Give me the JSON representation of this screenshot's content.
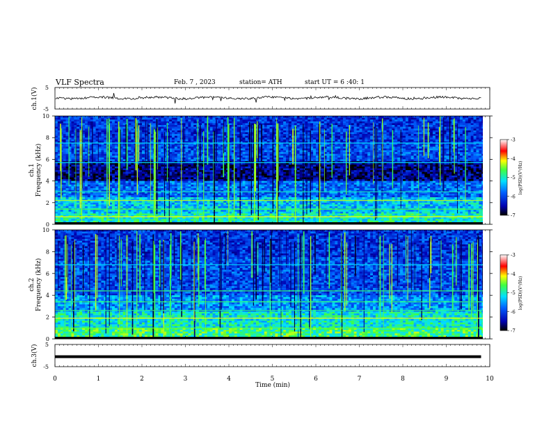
{
  "header": {
    "title": "VLF Spectra",
    "date": "Feb. 7 , 2023",
    "station": "station= ATH",
    "start": "start UT =  6 :40: 1"
  },
  "chart_data": [
    {
      "type": "line",
      "name": "ch1-waveform",
      "ylabel": "ch.1(V)",
      "ylim": [
        -5,
        5
      ],
      "yticks": [
        "5",
        "-5"
      ],
      "xlim": [
        0,
        10
      ]
    },
    {
      "type": "heatmap",
      "name": "ch1-spectrogram",
      "ylabel": "ch.1\nFrequency (kHz)",
      "ylabel_ch": "ch.1",
      "ylabel_freq": "Frequency (kHz)",
      "ylim": [
        0,
        10
      ],
      "yticks": [
        "0",
        "2",
        "4",
        "6",
        "8",
        "10"
      ],
      "xlim": [
        0,
        10
      ],
      "colorbar": {
        "label": "log(PSD)(V²/Hz)",
        "range": [
          -7,
          -3
        ],
        "ticks": [
          "-3",
          "-4",
          "-5",
          "-6",
          "-7"
        ]
      }
    },
    {
      "type": "heatmap",
      "name": "ch2-spectrogram",
      "ylabel_ch": "ch.2",
      "ylabel_freq": "Frequency (kHz)",
      "ylim": [
        0,
        10
      ],
      "yticks": [
        "0",
        "2",
        "4",
        "6",
        "8",
        "10"
      ],
      "xlim": [
        0,
        10
      ],
      "colorbar": {
        "label": "log(PSD)(V²/Hz)",
        "range": [
          -7,
          -3
        ],
        "ticks": [
          "-3",
          "-4",
          "-5",
          "-6",
          "-7"
        ]
      }
    },
    {
      "type": "line",
      "name": "ch3-waveform",
      "ylabel": "ch.3(V)",
      "ylim": [
        -5,
        5
      ],
      "yticks": [
        "5",
        "-5"
      ],
      "xlim": [
        0,
        10
      ],
      "x": [
        0,
        9.8
      ],
      "values": [
        -0.5,
        -0.5
      ]
    }
  ],
  "xaxis": {
    "label": "Time (min)",
    "ticks": [
      "0",
      "1",
      "2",
      "3",
      "4",
      "5",
      "6",
      "7",
      "8",
      "9",
      "10"
    ]
  }
}
